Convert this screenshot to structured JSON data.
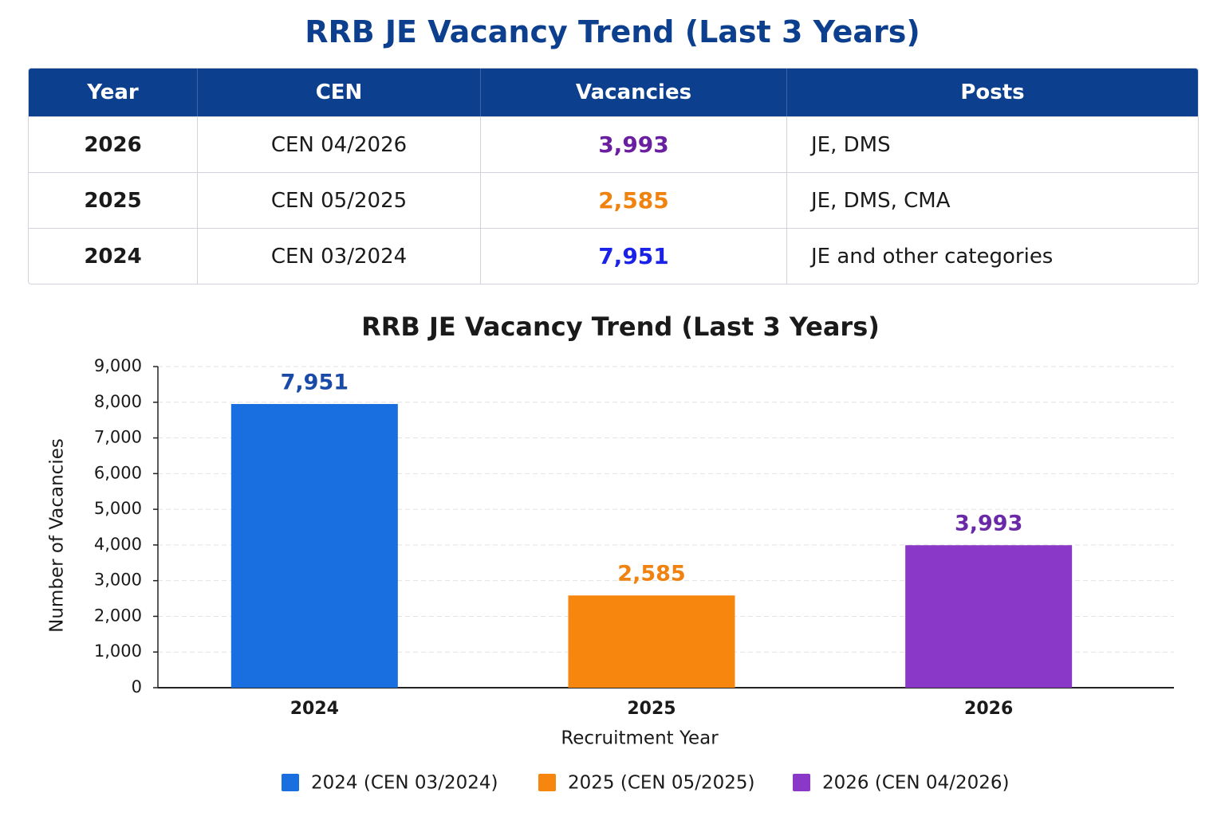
{
  "header": {
    "title": "RRB JE Vacancy Trend (Last 3 Years)"
  },
  "table": {
    "columns": [
      "Year",
      "CEN",
      "Vacancies",
      "Posts"
    ],
    "rows": [
      [
        "2026",
        "CEN 04/2026",
        "3,993",
        "JE, DMS"
      ],
      [
        "2025",
        "CEN 05/2025",
        "2,585",
        "JE, DMS, CMA"
      ],
      [
        "2024",
        "CEN 03/2024",
        "7,951",
        "JE and other categories"
      ]
    ],
    "vacancy_colors": [
      "#6a1fa0",
      "#f0820f",
      "#1a22e8"
    ]
  },
  "chart_data": {
    "type": "bar",
    "title": "RRB JE Vacancy Trend (Last 3 Years)",
    "categories": [
      "2024",
      "2025",
      "2026"
    ],
    "values": [
      7951,
      2585,
      3993
    ],
    "value_labels": [
      "7,951",
      "2,585",
      "3,993"
    ],
    "colors": [
      "#1a6fe0",
      "#f7860f",
      "#8a38c8"
    ],
    "label_colors": [
      "#1a4aa8",
      "#f0820f",
      "#6a2aa8"
    ],
    "legend": [
      "2024 (CEN 03/2024)",
      "2025 (CEN 05/2025)",
      "2026 (CEN 04/2026)"
    ],
    "xlabel": "Recruitment Year",
    "ylabel": "Number of Vacancies",
    "ylim": [
      0,
      9000
    ],
    "yticks": [
      0,
      {
        "value": 1000,
        "label": "1,000"
      },
      {
        "value": 2000,
        "label": "2,000"
      },
      {
        "value": 3000,
        "label": "3,000"
      },
      {
        "value": 4000,
        "label": "4,000"
      },
      {
        "value": 5000,
        "label": "5,000"
      },
      {
        "value": 6000,
        "label": "6,000"
      },
      {
        "value": 7000,
        "label": "7,000"
      },
      {
        "value": 8000,
        "label": "8,000"
      },
      {
        "value": 9000,
        "label": "9,000"
      }
    ],
    "grid": true
  }
}
